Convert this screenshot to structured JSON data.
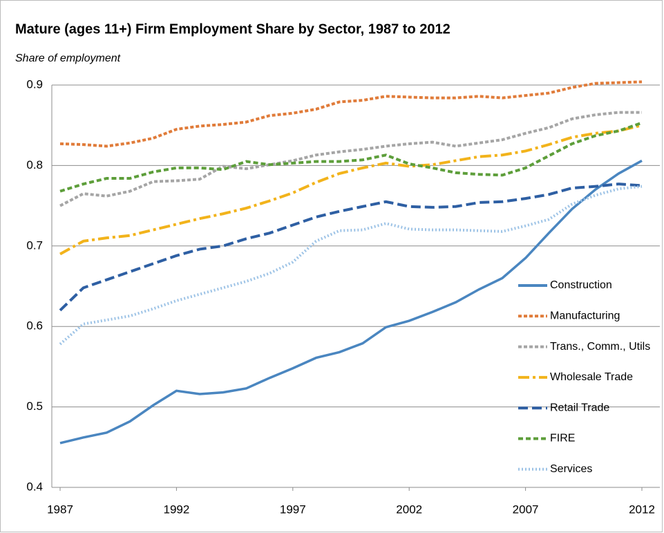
{
  "chart_data": {
    "type": "line",
    "title": "Mature (ages 11+) Firm Employment Share by Sector, 1987 to 2012",
    "subtitle": "Share of employment",
    "x": [
      1987,
      1988,
      1989,
      1990,
      1991,
      1992,
      1993,
      1994,
      1995,
      1996,
      1997,
      1998,
      1999,
      2000,
      2001,
      2002,
      2003,
      2004,
      2005,
      2006,
      2007,
      2008,
      2009,
      2010,
      2011,
      2012
    ],
    "xlim": [
      1987,
      2012
    ],
    "xticks": [
      1987,
      1992,
      1997,
      2002,
      2007,
      2012
    ],
    "ylim": [
      0.4,
      0.9
    ],
    "yticks": [
      0.4,
      0.5,
      0.6,
      0.7,
      0.8,
      0.9
    ],
    "grid": true,
    "legend": "right",
    "series": [
      {
        "name": "Construction",
        "color": "#4a86c0",
        "style": "solid",
        "values": [
          0.455,
          0.462,
          0.468,
          0.482,
          0.502,
          0.52,
          0.516,
          0.518,
          0.523,
          0.536,
          0.548,
          0.561,
          0.568,
          0.579,
          0.599,
          0.607,
          0.618,
          0.63,
          0.646,
          0.66,
          0.685,
          0.716,
          0.746,
          0.77,
          0.79,
          0.806
        ]
      },
      {
        "name": "Manufacturing",
        "color": "#e07b39",
        "style": "square-dot",
        "values": [
          0.827,
          0.826,
          0.824,
          0.828,
          0.834,
          0.845,
          0.849,
          0.851,
          0.854,
          0.862,
          0.865,
          0.87,
          0.879,
          0.881,
          0.886,
          0.885,
          0.884,
          0.884,
          0.886,
          0.884,
          0.887,
          0.89,
          0.897,
          0.902,
          0.903,
          0.904
        ]
      },
      {
        "name": "Trans., Comm., Utils",
        "color": "#a5a5a5",
        "style": "square-dot",
        "values": [
          0.75,
          0.765,
          0.762,
          0.768,
          0.78,
          0.781,
          0.783,
          0.799,
          0.796,
          0.801,
          0.806,
          0.813,
          0.817,
          0.82,
          0.824,
          0.827,
          0.829,
          0.824,
          0.828,
          0.832,
          0.84,
          0.847,
          0.858,
          0.863,
          0.866,
          0.866
        ]
      },
      {
        "name": "Wholesale Trade",
        "color": "#f2b31b",
        "style": "dash-dot",
        "values": [
          0.69,
          0.706,
          0.71,
          0.713,
          0.72,
          0.727,
          0.734,
          0.74,
          0.747,
          0.756,
          0.766,
          0.779,
          0.79,
          0.797,
          0.803,
          0.799,
          0.801,
          0.806,
          0.811,
          0.813,
          0.818,
          0.826,
          0.835,
          0.84,
          0.843,
          0.85
        ]
      },
      {
        "name": "Retail Trade",
        "color": "#2e5fa3",
        "style": "dash",
        "values": [
          0.62,
          0.648,
          0.658,
          0.668,
          0.678,
          0.688,
          0.696,
          0.7,
          0.709,
          0.716,
          0.726,
          0.736,
          0.743,
          0.749,
          0.755,
          0.749,
          0.748,
          0.749,
          0.754,
          0.755,
          0.759,
          0.764,
          0.772,
          0.774,
          0.777,
          0.775
        ]
      },
      {
        "name": "FIRE",
        "color": "#5d9e3a",
        "style": "short-dash",
        "values": [
          0.768,
          0.777,
          0.784,
          0.784,
          0.792,
          0.797,
          0.797,
          0.795,
          0.805,
          0.801,
          0.803,
          0.805,
          0.805,
          0.807,
          0.813,
          0.802,
          0.797,
          0.791,
          0.789,
          0.788,
          0.797,
          0.812,
          0.827,
          0.837,
          0.843,
          0.853
        ]
      },
      {
        "name": "Services",
        "color": "#9dc3e6",
        "style": "dot",
        "values": [
          0.578,
          0.603,
          0.608,
          0.613,
          0.622,
          0.632,
          0.64,
          0.648,
          0.656,
          0.666,
          0.68,
          0.706,
          0.719,
          0.72,
          0.728,
          0.721,
          0.72,
          0.72,
          0.719,
          0.718,
          0.725,
          0.733,
          0.752,
          0.763,
          0.771,
          0.774
        ]
      }
    ]
  }
}
